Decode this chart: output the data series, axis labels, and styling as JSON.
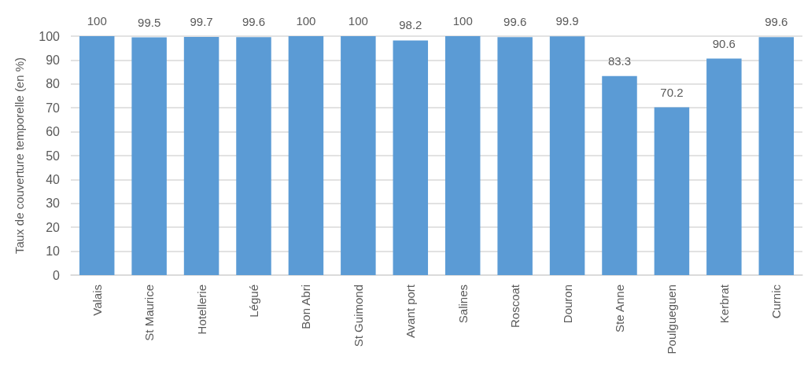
{
  "chart_data": {
    "type": "bar",
    "ylabel": "Taux de couverture temporelle (en %)",
    "categories": [
      "Valais",
      "St Maurice",
      "Hotellerie",
      "Légué",
      "Bon Abri",
      "St Guimond",
      "Avant port",
      "Salines",
      "Roscoat",
      "Douron",
      "Ste Anne",
      "Poulgueguen",
      "Kerbrat",
      "Curnic"
    ],
    "values": [
      100,
      99.5,
      99.7,
      99.6,
      100,
      100,
      98.2,
      100,
      99.6,
      99.9,
      83.3,
      70.2,
      90.6,
      99.6
    ],
    "color": "#5b9bd5",
    "ylim": [
      0,
      100
    ],
    "yticks": [
      0,
      10,
      20,
      30,
      40,
      50,
      60,
      70,
      80,
      90,
      100
    ],
    "grid": "y",
    "data_labels": true
  }
}
